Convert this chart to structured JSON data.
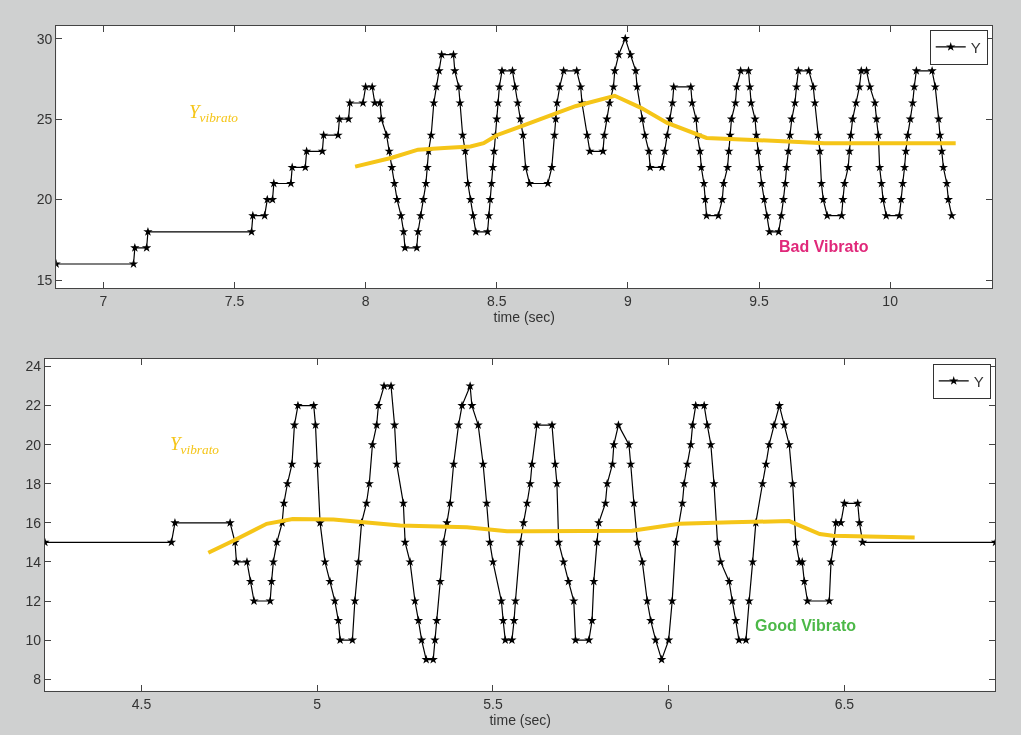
{
  "chart_data": [
    {
      "type": "line",
      "xlabel": "time (sec)",
      "xlim": [
        6.82,
        10.39
      ],
      "xticks": [
        7,
        7.5,
        8,
        8.5,
        9,
        9.5,
        10
      ],
      "ylim": [
        14.5,
        30.8
      ],
      "yticks": [
        15,
        20,
        25,
        30
      ],
      "legend": "top right",
      "annotations": [
        "Bad Vibrato"
      ],
      "series": [
        {
          "name": "Y",
          "color": "#000000",
          "marker": "star",
          "x": [
            6.82,
            7.115,
            7.12,
            7.165,
            7.17,
            7.565,
            7.57,
            7.615,
            7.625,
            7.645,
            7.65,
            7.715,
            7.72,
            7.77,
            7.775,
            7.835,
            7.84,
            7.895,
            7.9,
            7.935,
            7.94,
            7.99,
            8.0,
            8.025,
            8.035,
            8.055,
            8.06,
            8.08,
            8.09,
            8.1,
            8.11,
            8.12,
            8.135,
            8.145,
            8.15,
            8.195,
            8.2,
            8.21,
            8.22,
            8.23,
            8.235,
            8.24,
            8.25,
            8.26,
            8.27,
            8.28,
            8.29,
            8.335,
            8.34,
            8.355,
            8.36,
            8.37,
            8.38,
            8.39,
            8.4,
            8.41,
            8.42,
            8.465,
            8.47,
            8.475,
            8.48,
            8.485,
            8.49,
            8.495,
            8.5,
            8.505,
            8.51,
            8.52,
            8.56,
            8.57,
            8.58,
            8.59,
            8.6,
            8.61,
            8.625,
            8.695,
            8.71,
            8.72,
            8.725,
            8.73,
            8.74,
            8.755,
            8.805,
            8.82,
            8.825,
            8.845,
            8.855,
            8.905,
            8.91,
            8.92,
            8.93,
            8.945,
            8.95,
            8.965,
            8.99,
            9.01,
            9.03,
            9.035,
            9.055,
            9.065,
            9.08,
            9.085,
            9.13,
            9.14,
            9.15,
            9.16,
            9.17,
            9.175,
            9.24,
            9.245,
            9.26,
            9.265,
            9.275,
            9.28,
            9.29,
            9.295,
            9.3,
            9.345,
            9.36,
            9.365,
            9.38,
            9.385,
            9.39,
            9.395,
            9.41,
            9.415,
            9.43,
            9.46,
            9.465,
            9.47,
            9.485,
            9.49,
            9.497,
            9.503,
            9.51,
            9.52,
            9.53,
            9.54,
            9.575,
            9.585,
            9.593,
            9.6,
            9.605,
            9.612,
            9.618,
            9.625,
            9.637,
            9.643,
            9.65,
            9.69,
            9.707,
            9.713,
            9.726,
            9.732,
            9.738,
            9.745,
            9.76,
            9.815,
            9.82,
            9.826,
            9.84,
            9.845,
            9.85,
            9.857,
            9.87,
            9.883,
            9.89,
            9.91,
            9.923,
            9.942,
            9.948,
            9.955,
            9.96,
            9.967,
            9.973,
            9.985,
            10.035,
            10.042,
            10.048,
            10.055,
            10.06,
            10.067,
            10.077,
            10.086,
            10.092,
            10.1,
            10.16,
            10.172,
            10.185,
            10.19,
            10.197,
            10.203,
            10.216,
            10.222,
            10.235
          ],
          "values": [
            16,
            16,
            17,
            17,
            18,
            18,
            19,
            19,
            20,
            20,
            21,
            21,
            22,
            22,
            23,
            23,
            24,
            24,
            25,
            25,
            26,
            26,
            27,
            27,
            26,
            26,
            25,
            24,
            23,
            22,
            21,
            20,
            19,
            18,
            17,
            17,
            18,
            19,
            20,
            21,
            22,
            23,
            24,
            26,
            27,
            28,
            29,
            29,
            28,
            27,
            26,
            24,
            23,
            21,
            20,
            19,
            18,
            18,
            19,
            20,
            21,
            22,
            23,
            24,
            25,
            26,
            27,
            28,
            28,
            27,
            26,
            25,
            24,
            22,
            21,
            21,
            22,
            24,
            25,
            26,
            27,
            28,
            28,
            27,
            26,
            24,
            23,
            23,
            24,
            25,
            26,
            27,
            28,
            29,
            30,
            29,
            28,
            27,
            25,
            24,
            23,
            22,
            22,
            23,
            24,
            25,
            26,
            27,
            27,
            26,
            25,
            24,
            23,
            22,
            21,
            20,
            19,
            19,
            20,
            21,
            22,
            23,
            24,
            25,
            26,
            27,
            28,
            28,
            27,
            26,
            25,
            24,
            23,
            22,
            21,
            20,
            19,
            18,
            18,
            19,
            20,
            21,
            22,
            23,
            24,
            25,
            26,
            27,
            28,
            28,
            27,
            26,
            24,
            23,
            21,
            20,
            19,
            19,
            20,
            21,
            22,
            23,
            24,
            25,
            26,
            27,
            28,
            28,
            27,
            26,
            25,
            24,
            22,
            21,
            20,
            19,
            19,
            20,
            21,
            22,
            23,
            24,
            25,
            26,
            27,
            28,
            28,
            27,
            25,
            24,
            23,
            22,
            21,
            20,
            19
          ]
        },
        {
          "name": "Y$_{vibrato}$",
          "color": "#f5c518",
          "marker": "none",
          "x": [
            7.96,
            8.1,
            8.2,
            8.3,
            8.4,
            8.45,
            8.5,
            8.6,
            8.7,
            8.8,
            8.95,
            9.05,
            9.15,
            9.3,
            9.5,
            9.75,
            10.0,
            10.25
          ],
          "values": [
            22.05,
            22.6,
            23.1,
            23.2,
            23.3,
            23.5,
            24.0,
            24.6,
            25.2,
            25.8,
            26.45,
            25.7,
            24.76,
            23.83,
            23.69,
            23.5,
            23.5,
            23.5
          ]
        }
      ]
    },
    {
      "type": "line",
      "xlabel": "time (sec)",
      "xlim": [
        4.225,
        6.93
      ],
      "xticks": [
        4.5,
        5,
        5.5,
        6,
        6.5
      ],
      "ylim": [
        7.4,
        24.4
      ],
      "yticks": [
        8,
        10,
        12,
        14,
        16,
        18,
        20,
        22,
        24
      ],
      "legend": "top right",
      "annotations": [
        "Good Vibrato"
      ],
      "series": [
        {
          "name": "Y",
          "color": "#000000",
          "marker": "star",
          "x": [
            4.225,
            4.585,
            4.595,
            4.752,
            4.766,
            4.77,
            4.8,
            4.81,
            4.82,
            4.866,
            4.87,
            4.875,
            4.885,
            4.9,
            4.905,
            4.915,
            4.928,
            4.935,
            4.945,
            4.99,
            4.995,
            5.0,
            5.008,
            5.022,
            5.036,
            5.05,
            5.06,
            5.065,
            5.1,
            5.107,
            5.117,
            5.126,
            5.14,
            5.148,
            5.157,
            5.169,
            5.174,
            5.19,
            5.21,
            5.22,
            5.226,
            5.245,
            5.25,
            5.264,
            5.278,
            5.288,
            5.297,
            5.31,
            5.33,
            5.335,
            5.34,
            5.35,
            5.359,
            5.369,
            5.378,
            5.388,
            5.402,
            5.412,
            5.435,
            5.44,
            5.458,
            5.472,
            5.482,
            5.491,
            5.5,
            5.524,
            5.529,
            5.535,
            5.554,
            5.56,
            5.564,
            5.578,
            5.587,
            5.597,
            5.606,
            5.611,
            5.625,
            5.668,
            5.677,
            5.682,
            5.687,
            5.701,
            5.715,
            5.73,
            5.735,
            5.773,
            5.782,
            5.787,
            5.796,
            5.801,
            5.82,
            5.825,
            5.84,
            5.844,
            5.857,
            5.887,
            5.892,
            5.901,
            5.911,
            5.925,
            5.939,
            5.949,
            5.963,
            5.98,
            6.0,
            6.01,
            6.02,
            6.039,
            6.044,
            6.053,
            6.063,
            6.068,
            6.077,
            6.101,
            6.11,
            6.12,
            6.129,
            6.139,
            6.148,
            6.172,
            6.181,
            6.191,
            6.2,
            6.22,
            6.229,
            6.239,
            6.248,
            6.267,
            6.277,
            6.286,
            6.3,
            6.315,
            6.329,
            6.343,
            6.353,
            6.362,
            6.372,
            6.38,
            6.386,
            6.395,
            6.457,
            6.462,
            6.47,
            6.476,
            6.49,
            6.5,
            6.538,
            6.543,
            6.552,
            6.93
          ],
          "values": [
            15,
            15,
            16,
            16,
            15,
            14,
            14,
            13,
            12,
            12,
            13,
            14,
            15,
            16,
            17,
            18,
            19,
            21,
            22,
            22,
            21,
            19,
            16,
            14,
            13,
            12,
            11,
            10,
            10,
            12,
            14,
            16,
            17,
            18,
            20,
            21,
            22,
            23,
            23,
            21,
            19,
            17,
            15,
            14,
            12,
            11,
            10,
            9,
            9,
            10,
            11,
            13,
            15,
            16,
            17,
            19,
            21,
            22,
            23,
            22,
            21,
            19,
            17,
            15,
            14,
            12,
            11,
            10,
            10,
            11,
            12,
            15,
            16,
            17,
            18,
            19,
            21,
            21,
            19,
            18,
            15,
            14,
            13,
            12,
            10,
            10,
            11,
            13,
            15,
            16,
            17,
            18,
            19,
            20,
            21,
            20,
            19,
            17,
            15,
            14,
            12,
            11,
            10,
            9,
            10,
            12,
            15,
            17,
            18,
            19,
            20,
            21,
            22,
            22,
            21,
            20,
            18,
            15,
            14,
            13,
            12,
            11,
            10,
            10,
            12,
            14,
            16,
            18,
            19,
            20,
            21,
            22,
            21,
            20,
            18,
            15,
            14,
            14,
            13,
            12,
            12,
            14,
            15,
            16,
            16,
            17,
            17,
            16,
            15,
            15
          ]
        },
        {
          "name": "Y$_{vibrato}$",
          "color": "#f5c518",
          "marker": "none",
          "x": [
            4.69,
            4.761,
            4.856,
            4.93,
            5.046,
            5.236,
            5.426,
            5.54,
            5.61,
            5.896,
            6.03,
            6.18,
            6.343,
            6.43,
            6.467,
            6.7
          ],
          "values": [
            14.47,
            15.08,
            15.95,
            16.2,
            16.17,
            15.86,
            15.77,
            15.57,
            15.57,
            15.6,
            15.95,
            16.03,
            16.09,
            15.43,
            15.34,
            15.25
          ]
        }
      ]
    }
  ]
}
